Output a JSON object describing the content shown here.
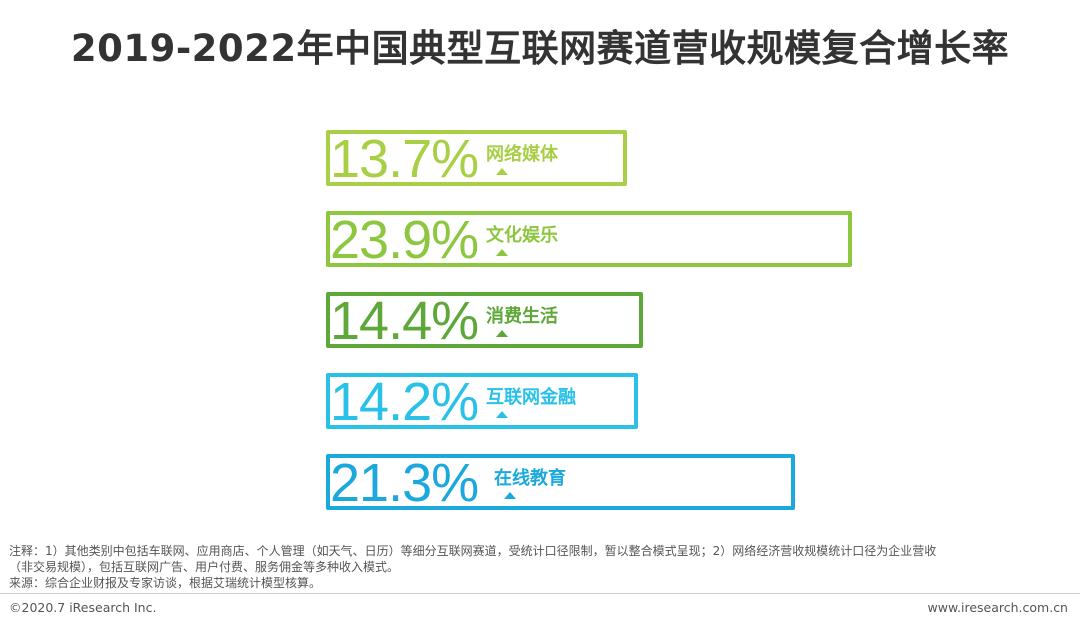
{
  "chart_data": {
    "type": "bar",
    "title": "2019-2022年中国典型互联网赛道营收规模复合增长率",
    "categories": [
      "网络媒体",
      "文化娱乐",
      "消费生活",
      "互联网金融",
      "在线教育"
    ],
    "values": [
      13.7,
      23.9,
      14.4,
      14.2,
      21.3
    ],
    "value_labels": [
      "13.7%",
      "23.9%",
      "14.4%",
      "14.2%",
      "21.3%"
    ],
    "colors": [
      "#a8cf45",
      "#8dc63f",
      "#5ea83a",
      "#29c1e8",
      "#1ba9dd"
    ],
    "xlim": [
      0,
      30
    ]
  },
  "notes": {
    "line1": "注释：1）其他类别中包括车联网、应用商店、个人管理（如天气、日历）等细分互联网赛道，受统计口径限制，暂以整合模式呈现；2）网络经济营收规模统计口径为企业营收",
    "line2": "（非交易规模），包括互联网广告、用户付费、服务佣金等多种收入模式。",
    "source": "来源：综合企业财报及专家访谈，根据艾瑞统计模型核算。"
  },
  "footer": {
    "copyright": "©2020.7 iResearch Inc.",
    "website": "www.iresearch.com.cn"
  }
}
